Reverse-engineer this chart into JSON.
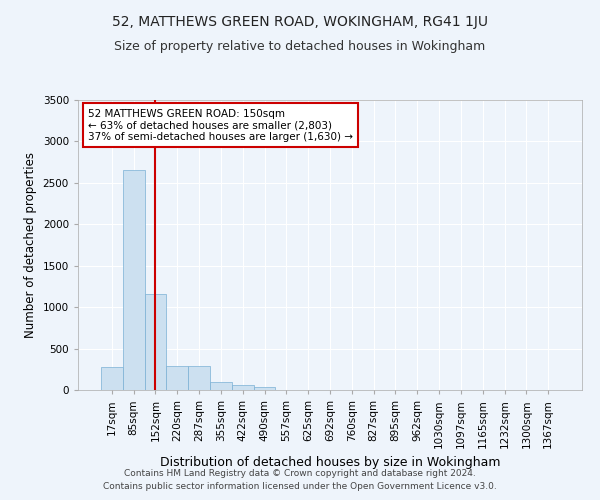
{
  "title1": "52, MATTHEWS GREEN ROAD, WOKINGHAM, RG41 1JU",
  "title2": "Size of property relative to detached houses in Wokingham",
  "xlabel": "Distribution of detached houses by size in Wokingham",
  "ylabel": "Number of detached properties",
  "footnote1": "Contains HM Land Registry data © Crown copyright and database right 2024.",
  "footnote2": "Contains public sector information licensed under the Open Government Licence v3.0.",
  "bar_labels": [
    "17sqm",
    "85sqm",
    "152sqm",
    "220sqm",
    "287sqm",
    "355sqm",
    "422sqm",
    "490sqm",
    "557sqm",
    "625sqm",
    "692sqm",
    "760sqm",
    "827sqm",
    "895sqm",
    "962sqm",
    "1030sqm",
    "1097sqm",
    "1165sqm",
    "1232sqm",
    "1300sqm",
    "1367sqm"
  ],
  "bar_values": [
    280,
    2650,
    1155,
    290,
    285,
    95,
    60,
    40,
    0,
    0,
    0,
    0,
    0,
    0,
    0,
    0,
    0,
    0,
    0,
    0,
    0
  ],
  "bar_color": "#cce0f0",
  "bar_edge_color": "#7ab0d4",
  "highlight_label": "52 MATTHEWS GREEN ROAD: 150sqm\n← 63% of detached houses are smaller (2,803)\n37% of semi-detached houses are larger (1,630) →",
  "vline_color": "#cc0000",
  "annotation_box_color": "#cc0000",
  "ylim": [
    0,
    3500
  ],
  "yticks": [
    0,
    500,
    1000,
    1500,
    2000,
    2500,
    3000,
    3500
  ],
  "background_color": "#eef4fb",
  "grid_color": "#ffffff",
  "title1_fontsize": 10,
  "title2_fontsize": 9,
  "axis_label_fontsize": 8.5,
  "tick_fontsize": 7.5,
  "footnote_fontsize": 6.5
}
